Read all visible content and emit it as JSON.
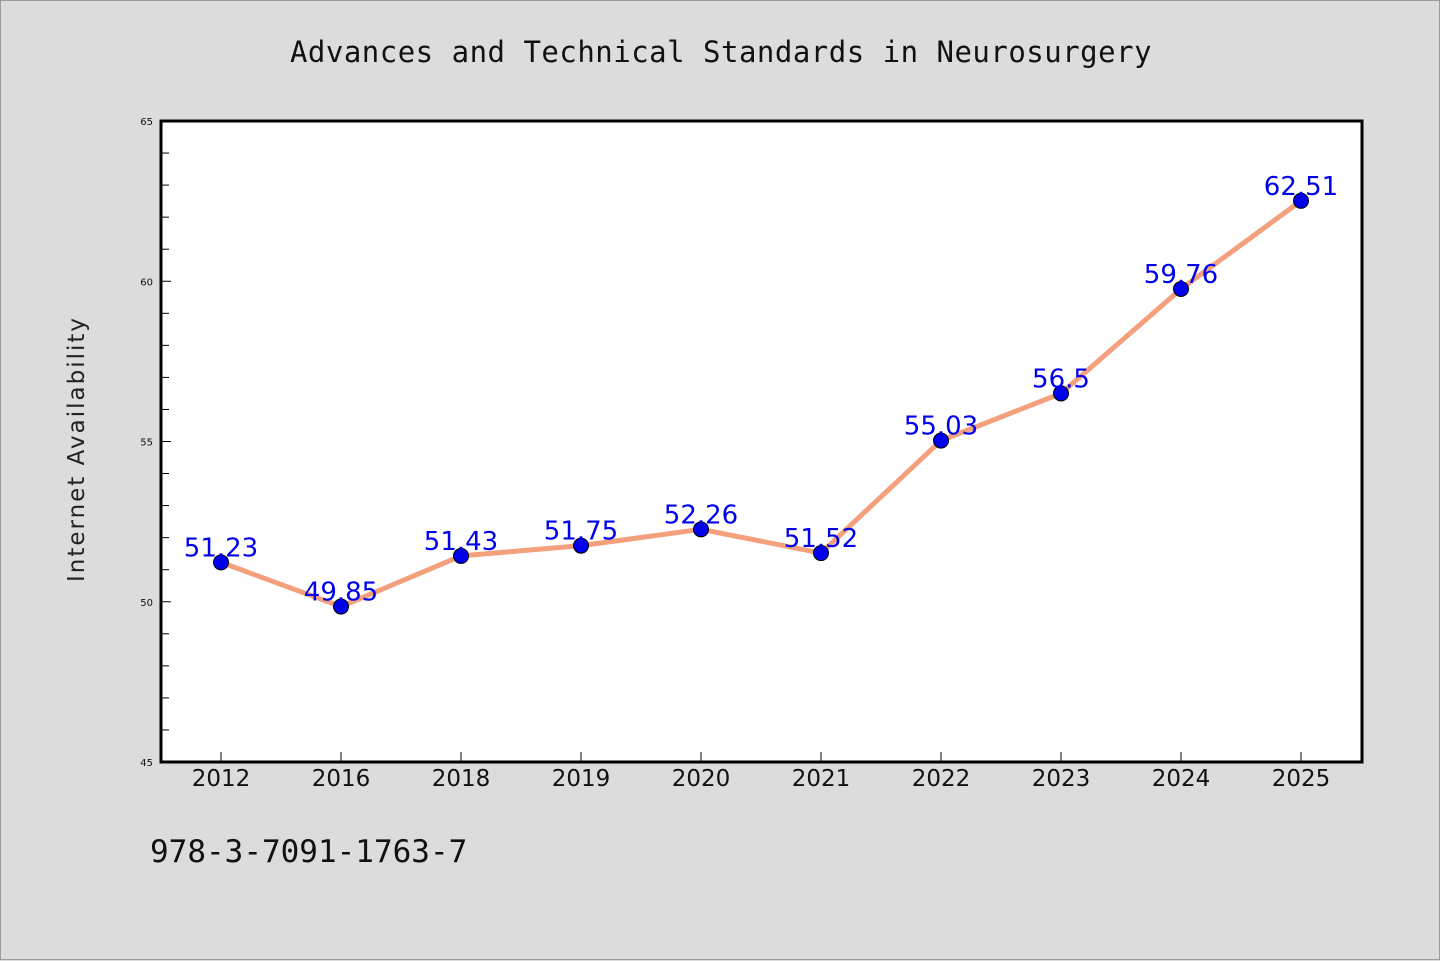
{
  "chart_data": {
    "type": "line",
    "title": "Advances and Technical Standards in Neurosurgery",
    "xlabel": "",
    "ylabel": "Internet Availability",
    "categories": [
      "2012",
      "2016",
      "2018",
      "2019",
      "2020",
      "2021",
      "2022",
      "2023",
      "2024",
      "2025"
    ],
    "series": [
      {
        "values": [
          51.23,
          49.85,
          51.43,
          51.75,
          52.26,
          51.52,
          55.03,
          56.5,
          59.76,
          62.51
        ],
        "data_labels": [
          "51.23",
          "49.85",
          "51.43",
          "51.75",
          "52.26",
          "51.52",
          "55.03",
          "56.5",
          "59.76",
          "62.51"
        ]
      }
    ],
    "ylim": [
      45,
      65
    ],
    "yticks": [
      "45",
      "50",
      "55",
      "60",
      "65"
    ],
    "grid": false,
    "line_color": "#f4a07c",
    "marker_color": "#0000ee",
    "label_color": "#0000ee"
  },
  "footer": {
    "isbn": "978-3-7091-1763-7"
  }
}
